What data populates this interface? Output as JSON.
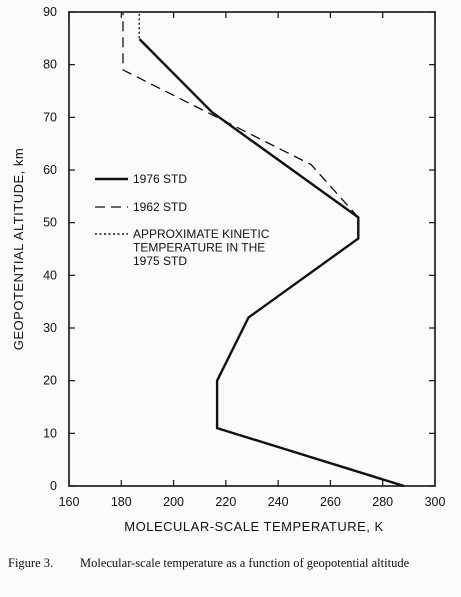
{
  "chart_data": {
    "type": "line",
    "xlabel": "MOLECULAR-SCALE TEMPERATURE, K",
    "ylabel": "GEOPOTENTIAL ALTITUDE, km",
    "xlim": [
      160,
      300
    ],
    "ylim": [
      0,
      90
    ],
    "x_ticks": [
      160,
      180,
      200,
      220,
      240,
      260,
      280,
      300
    ],
    "y_ticks": [
      0,
      10,
      20,
      30,
      40,
      50,
      60,
      70,
      80,
      90
    ],
    "grid": false,
    "legend_position": "left-center",
    "series": [
      {
        "name": "1976 STD",
        "style": "solid",
        "color": "#111111",
        "points": [
          [
            288.15,
            0
          ],
          [
            216.65,
            11
          ],
          [
            216.65,
            20
          ],
          [
            228.65,
            32
          ],
          [
            270.65,
            47
          ],
          [
            270.65,
            51
          ],
          [
            214.65,
            71
          ],
          [
            186.95,
            84.852
          ]
        ]
      },
      {
        "name": "1962 STD",
        "style": "dashed",
        "color": "#111111",
        "points": [
          [
            270.65,
            51
          ],
          [
            252.65,
            61
          ],
          [
            180.65,
            79
          ],
          [
            180.65,
            90
          ]
        ]
      },
      {
        "name": "APPROXIMATE KINETIC TEMPERATURE IN THE 1975 STD",
        "name_lines": [
          "APPROXIMATE KINETIC",
          "TEMPERATURE IN THE",
          "1975 STD"
        ],
        "style": "dotted",
        "color": "#111111",
        "points": [
          [
            186.87,
            85
          ],
          [
            186.87,
            90
          ]
        ]
      }
    ]
  },
  "caption": {
    "label": "Figure 3.",
    "text": "Molecular-scale temperature as a function of geopotential altitude"
  }
}
